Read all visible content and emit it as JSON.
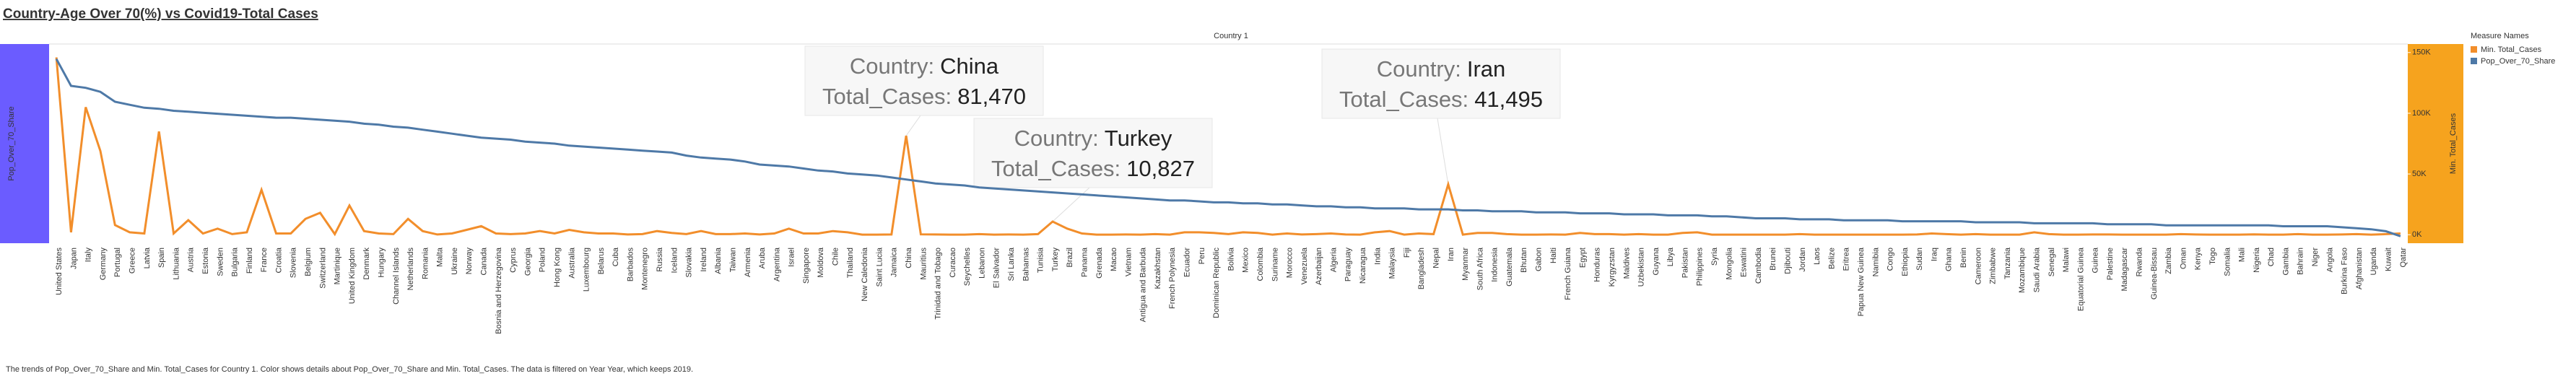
{
  "chart_data": {
    "type": "line",
    "title": "Country-Age Over 70(%) vs Covid19-Total Cases",
    "header": "Country 1",
    "y_axis_label": "Pop_Over_70_Share",
    "y2_axis_label": "Min. Total_Cases",
    "legend_title": "Measure Names",
    "caption": "The trends of Pop_Over_70_Share and Min. Total_Cases for Country 1. Color shows details about Pop_Over_70_Share and Min. Total_Cases. The data is filtered on Year Year, which keeps 2019.",
    "categories": [
      "United States",
      "Japan",
      "Italy",
      "Germany",
      "Portugal",
      "Greece",
      "Latvia",
      "Spain",
      "Lithuania",
      "Austria",
      "Estonia",
      "Sweden",
      "Bulgaria",
      "Finland",
      "France",
      "Croatia",
      "Slovenia",
      "Belgium",
      "Switzerland",
      "Martinique",
      "United Kingdom",
      "Denmark",
      "Hungary",
      "Channel Islands",
      "Netherlands",
      "Romania",
      "Malta",
      "Ukraine",
      "Norway",
      "Canada",
      "Bosnia and Herzegovina",
      "Cyprus",
      "Georgia",
      "Poland",
      "Hong Kong",
      "Australia",
      "Luxembourg",
      "Belarus",
      "Cuba",
      "Barbados",
      "Montenegro",
      "Russia",
      "Iceland",
      "Slovakia",
      "Ireland",
      "Albania",
      "Taiwan",
      "Armenia",
      "Aruba",
      "Argentina",
      "Israel",
      "Singapore",
      "Moldova",
      "Chile",
      "Thailand",
      "New Caledonia",
      "Saint Lucia",
      "Jamaica",
      "China",
      "Mauritius",
      "Trinidad and Tobago",
      "Curacao",
      "Seychelles",
      "Lebanon",
      "El Salvador",
      "Sri Lanka",
      "Bahamas",
      "Tunisia",
      "Turkey",
      "Brazil",
      "Panama",
      "Grenada",
      "Macao",
      "Vietnam",
      "Antigua and Barbuda",
      "Kazakhstan",
      "French Polynesia",
      "Ecuador",
      "Peru",
      "Dominican Republic",
      "Bolivia",
      "Mexico",
      "Colombia",
      "Suriname",
      "Morocco",
      "Venezuela",
      "Azerbaijan",
      "Algeria",
      "Paraguay",
      "Nicaragua",
      "India",
      "Malaysia",
      "Fiji",
      "Bangladesh",
      "Nepal",
      "Iran",
      "Myanmar",
      "South Africa",
      "Indonesia",
      "Guatemala",
      "Bhutan",
      "Gabon",
      "Haiti",
      "French Guiana",
      "Egypt",
      "Honduras",
      "Kyrgyzstan",
      "Maldives",
      "Uzbekistan",
      "Guyana",
      "Libya",
      "Pakistan",
      "Philippines",
      "Syria",
      "Mongolia",
      "Eswatini",
      "Cambodia",
      "Brunei",
      "Djibouti",
      "Jordan",
      "Laos",
      "Belize",
      "Eritrea",
      "Papua New Guinea",
      "Namibia",
      "Congo",
      "Ethiopia",
      "Sudan",
      "Iraq",
      "Ghana",
      "Benin",
      "Cameroon",
      "Zimbabwe",
      "Tanzania",
      "Mozambique",
      "Saudi Arabia",
      "Senegal",
      "Malawi",
      "Equatorial Guinea",
      "Guinea",
      "Palestine",
      "Madagascar",
      "Rwanda",
      "Guinea-Bissau",
      "Zambia",
      "Oman",
      "Kenya",
      "Togo",
      "Somalia",
      "Mali",
      "Nigeria",
      "Chad",
      "Gambia",
      "Bahrain",
      "Niger",
      "Angola",
      "Burkina Faso",
      "Afghanistan",
      "Uganda",
      "Kuwait",
      "Qatar"
    ],
    "series": [
      {
        "name": "Min. Total_Cases",
        "color": "#f28e2b",
        "axis": "y2",
        "values": [
          146000,
          2000,
          105000,
          69000,
          8000,
          2000,
          1000,
          85000,
          1000,
          12000,
          1000,
          5000,
          500,
          2000,
          37000,
          1000,
          1000,
          13000,
          18000,
          500,
          24000,
          3000,
          1000,
          500,
          13000,
          3000,
          200,
          1000,
          4000,
          7000,
          1000,
          500,
          1000,
          3000,
          1000,
          4000,
          2000,
          1000,
          1000,
          200,
          500,
          3000,
          1500,
          500,
          3000,
          500,
          500,
          1000,
          200,
          1000,
          5000,
          1000,
          1000,
          3000,
          2000,
          100,
          100,
          200,
          81470,
          300,
          200,
          100,
          100,
          500,
          100,
          200,
          100,
          500,
          10827,
          5000,
          1000,
          100,
          100,
          200,
          100,
          500,
          100,
          2000,
          2000,
          1500,
          500,
          2000,
          1500,
          100,
          1000,
          200,
          500,
          1000,
          200,
          100,
          2000,
          3000,
          100,
          1000,
          500,
          41495,
          100,
          1500,
          1500,
          500,
          100,
          100,
          200,
          100,
          1500,
          500,
          500,
          100,
          500,
          100,
          100,
          1500,
          2000,
          100,
          100,
          100,
          100,
          100,
          100,
          500,
          100,
          100,
          100,
          100,
          100,
          100,
          100,
          200,
          1000,
          500,
          100,
          500,
          100,
          100,
          100,
          2000,
          500,
          100,
          100,
          200,
          200,
          100,
          100,
          100,
          100,
          500,
          200,
          100,
          100,
          100,
          300,
          100,
          100,
          500,
          100,
          100,
          200,
          500,
          100,
          500,
          1000
        ]
      },
      {
        "name": "Pop_Over_70_Share",
        "color": "#4e79a7",
        "values": [
          18.5,
          15.8,
          15.6,
          15.2,
          14.2,
          13.9,
          13.6,
          13.5,
          13.3,
          13.2,
          13.1,
          13.0,
          12.9,
          12.8,
          12.7,
          12.6,
          12.6,
          12.5,
          12.4,
          12.3,
          12.2,
          12.0,
          11.9,
          11.7,
          11.6,
          11.4,
          11.2,
          11.0,
          10.8,
          10.6,
          10.5,
          10.4,
          10.2,
          10.1,
          10.0,
          9.8,
          9.7,
          9.6,
          9.5,
          9.4,
          9.3,
          9.2,
          9.1,
          8.8,
          8.6,
          8.5,
          8.4,
          8.2,
          7.9,
          7.8,
          7.7,
          7.5,
          7.3,
          7.2,
          7.0,
          6.9,
          6.8,
          6.6,
          6.4,
          6.2,
          6.0,
          5.9,
          5.8,
          5.6,
          5.5,
          5.4,
          5.3,
          5.2,
          5.1,
          5.0,
          4.9,
          4.8,
          4.7,
          4.6,
          4.5,
          4.4,
          4.3,
          4.3,
          4.2,
          4.1,
          4.1,
          4.0,
          4.0,
          3.9,
          3.9,
          3.8,
          3.7,
          3.7,
          3.6,
          3.6,
          3.5,
          3.5,
          3.5,
          3.4,
          3.4,
          3.4,
          3.3,
          3.3,
          3.2,
          3.2,
          3.2,
          3.1,
          3.1,
          3.1,
          3.0,
          3.0,
          3.0,
          2.9,
          2.9,
          2.9,
          2.8,
          2.8,
          2.8,
          2.7,
          2.7,
          2.6,
          2.5,
          2.5,
          2.5,
          2.4,
          2.4,
          2.4,
          2.3,
          2.3,
          2.3,
          2.3,
          2.2,
          2.2,
          2.2,
          2.2,
          2.2,
          2.1,
          2.1,
          2.1,
          2.1,
          2.0,
          2.0,
          2.0,
          2.0,
          2.0,
          1.9,
          1.9,
          1.9,
          1.9,
          1.8,
          1.8,
          1.8,
          1.8,
          1.8,
          1.8,
          1.8,
          1.8,
          1.7,
          1.7,
          1.7,
          1.7,
          1.6,
          1.5,
          1.4,
          1.2,
          0.7
        ]
      }
    ],
    "ylim": [
      0,
      20
    ],
    "y2lim": [
      -7000,
      157000
    ],
    "y2ticks": [
      {
        "value": 0,
        "label": "0K"
      },
      {
        "value": 50000,
        "label": "50K"
      },
      {
        "value": 100000,
        "label": "100K"
      },
      {
        "value": 150000,
        "label": "150K"
      }
    ],
    "tooltip_fields": [
      "Country:",
      "Total_Cases:"
    ],
    "tooltips": [
      {
        "country": "China",
        "total_cases": 81470,
        "total_cases_label": "81,470"
      },
      {
        "country": "Turkey",
        "total_cases": 10827,
        "total_cases_label": "10,827"
      },
      {
        "country": "Iran",
        "total_cases": 41495,
        "total_cases_label": "41,495"
      }
    ]
  }
}
